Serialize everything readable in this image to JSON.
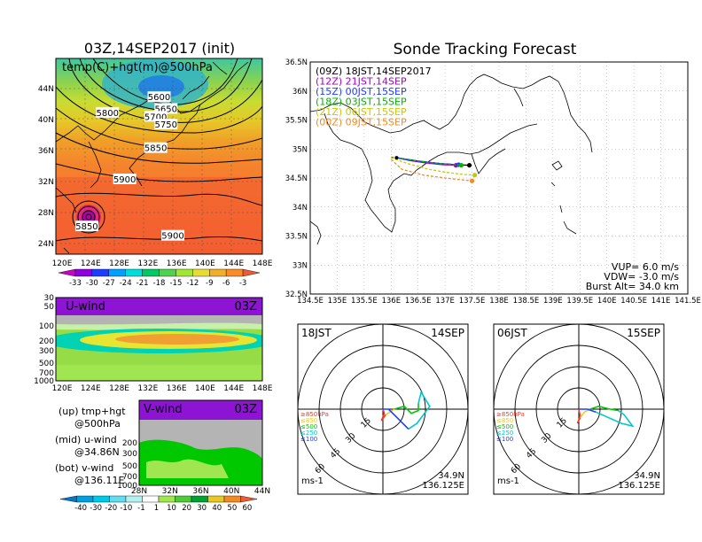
{
  "map_panel": {
    "title": "03Z,14SEP2017 (init)",
    "label": "temp(C)+hgt(m)@500hPa",
    "lon_ticks": [
      "120E",
      "124E",
      "128E",
      "132E",
      "136E",
      "140E",
      "144E",
      "148E"
    ],
    "lat_ticks": [
      "44N",
      "40N",
      "36N",
      "32N",
      "28N",
      "24N"
    ],
    "contour_labels": [
      "5600",
      "5650",
      "5700",
      "5750",
      "5800",
      "5850",
      "5900",
      "5850",
      "5900"
    ],
    "colorbar_ticks": [
      "-33",
      "-30",
      "-27",
      "-24",
      "-21",
      "-18",
      "-15",
      "-12",
      "-9",
      "-6",
      "-3"
    ],
    "colorbar_colors": [
      "#c800c8",
      "#8c00dc",
      "#1e3cff",
      "#00a0ff",
      "#00dcdc",
      "#00c864",
      "#50d250",
      "#a0e632",
      "#e6dc32",
      "#f0af28",
      "#fa8c28",
      "#f05a32"
    ]
  },
  "u_panel": {
    "label": "U-wind",
    "time": "03Z",
    "lon_ticks": [
      "120E",
      "124E",
      "128E",
      "132E",
      "136E",
      "140E",
      "144E",
      "148E"
    ],
    "lev_ticks": [
      "30",
      "50",
      "100",
      "200",
      "300",
      "500",
      "700",
      "1000"
    ]
  },
  "v_panel": {
    "label": "V-wind",
    "time": "03Z",
    "lat_ticks": [
      "28N",
      "32N",
      "36N",
      "40N",
      "44N"
    ],
    "lev_ticks": [
      "200",
      "300",
      "500",
      "700",
      "1000"
    ],
    "colorbar_ticks": [
      "-40",
      "-30",
      "-20",
      "-10",
      "-1",
      "1",
      "10",
      "20",
      "30",
      "40",
      "50",
      "60"
    ]
  },
  "notes": {
    "up_label": "(up) tmp+hgt",
    "up_sub": "@500hPa",
    "mid_label": "(mid) u-wind",
    "mid_sub": "@34.86N",
    "bot_label": "(bot) v-wind",
    "bot_sub": "@136.11E"
  },
  "track_panel": {
    "title": "Sonde Tracking Forecast",
    "legend": [
      {
        "text": "(09Z)  18JST,14SEP2017",
        "color": "#000000"
      },
      {
        "text": "(12Z)  21JST,14SEP",
        "color": "#a000c8"
      },
      {
        "text": "(15Z)  00JST,15SEP",
        "color": "#1e3cff"
      },
      {
        "text": "(18Z)  03JST,15SEP",
        "color": "#00b400"
      },
      {
        "text": "(21Z)  06JST,15SEP",
        "color": "#c8c800"
      },
      {
        "text": "(00Z)  09JST,15SEP",
        "color": "#f08c28"
      }
    ],
    "vup": "VUP=  6.0  m/s",
    "vdw": "VDW= -3.0  m/s",
    "burst": "Burst Alt=  34.0  km",
    "lon_ticks": [
      "134.5E",
      "135E",
      "135.5E",
      "136E",
      "136.5E",
      "137E",
      "137.5E",
      "138E",
      "138.5E",
      "139E",
      "139.5E",
      "140E",
      "140.5E",
      "141E",
      "141.5E"
    ],
    "lat_ticks": [
      "36.5N",
      "36N",
      "35.5N",
      "35N",
      "34.5N",
      "34N",
      "33.5N",
      "33N",
      "32.5N"
    ]
  },
  "hodo_left": {
    "time": "18JST",
    "date": "14SEP",
    "lat": "34.9N",
    "lon": "136.125E",
    "unit": "ms-1",
    "ring_labels": [
      "15",
      "30",
      "45",
      "60"
    ],
    "level_legend": [
      "≥850hPa",
      "≤850",
      "≤500",
      "≤250",
      "≤100"
    ],
    "level_colors": [
      "#f03c28",
      "#f0c828",
      "#00c800",
      "#00c8c8",
      "#1e3cff"
    ]
  },
  "hodo_right": {
    "time": "06JST",
    "date": "15SEP",
    "lat": "34.9N",
    "lon": "136.125E",
    "unit": "ms-1",
    "ring_labels": [
      "15",
      "30",
      "45",
      "60"
    ],
    "level_legend": [
      "≥850hPa",
      "≤850",
      "≤500",
      "≤250",
      "≤100"
    ],
    "level_colors": [
      "#f03c28",
      "#f0c828",
      "#00c800",
      "#00c8c8",
      "#1e3cff"
    ]
  },
  "chart_data": [
    {
      "type": "heatmap",
      "title": "03Z,14SEP2017 (init)",
      "subtitle": "temp(C)+hgt(m)@500hPa",
      "xlim": [
        120,
        150
      ],
      "ylim": [
        22,
        47
      ],
      "contours": [
        {
          "value": 5600,
          "lon": 135.0,
          "lat": 42.0
        },
        {
          "value": 5650,
          "lon": 136.0,
          "lat": 40.5
        },
        {
          "value": 5700,
          "lon": 134.5,
          "lat": 39.5
        },
        {
          "value": 5750,
          "lon": 136.0,
          "lat": 38.5
        },
        {
          "value": 5800,
          "lon": 127.5,
          "lat": 40.0
        },
        {
          "value": 5850,
          "lon": 134.5,
          "lat": 35.5
        },
        {
          "value": 5900,
          "lon": 130.0,
          "lat": 31.5
        },
        {
          "value": 5850,
          "lon": 124.5,
          "lat": 25.5
        },
        {
          "value": 5900,
          "lon": 137.0,
          "lat": 24.3
        }
      ]
    },
    {
      "type": "heatmap",
      "title": "U-wind",
      "xlabel": "",
      "xlim": [
        120,
        150
      ],
      "ylim": [
        1000,
        30
      ]
    },
    {
      "type": "heatmap",
      "title": "V-wind",
      "xlim": [
        28,
        44
      ],
      "ylim": [
        1000,
        30
      ]
    },
    {
      "type": "line",
      "title": "Sonde Tracking Forecast",
      "xlim": [
        134.5,
        141.5
      ],
      "ylim": [
        32.5,
        36.5
      ],
      "launch": {
        "lon": 136.1,
        "lat": 34.85
      },
      "series": [
        {
          "name": "(09Z)  18JST,14SEP2017",
          "color": "#000000",
          "x": [
            136.1,
            136.3,
            136.6,
            136.9,
            137.2,
            137.45
          ],
          "y": [
            34.85,
            34.82,
            34.78,
            34.75,
            34.73,
            34.72
          ]
        },
        {
          "name": "(12Z)  21JST,14SEP",
          "color": "#a000c8",
          "x": [
            136.1,
            136.35,
            136.65,
            136.95,
            137.2
          ],
          "y": [
            34.85,
            34.8,
            34.76,
            34.73,
            34.72
          ]
        },
        {
          "name": "(15Z)  00JST,15SEP",
          "color": "#1e3cff",
          "x": [
            136.1,
            136.4,
            136.7,
            137.0,
            137.25
          ],
          "y": [
            34.85,
            34.8,
            34.77,
            34.74,
            34.73
          ]
        },
        {
          "name": "(18Z)  03JST,15SEP",
          "color": "#00b400",
          "x": [
            136.0,
            136.3,
            136.7,
            137.0,
            137.3
          ],
          "y": [
            34.86,
            34.82,
            34.77,
            34.74,
            34.72
          ]
        },
        {
          "name": "(21Z)  06JST,15SEP",
          "color": "#c8c800",
          "x": [
            136.0,
            136.3,
            136.7,
            137.0,
            137.35,
            137.55
          ],
          "y": [
            34.85,
            34.75,
            34.65,
            34.6,
            34.56,
            34.55
          ]
        },
        {
          "name": "(00Z)  09JST,15SEP",
          "color": "#f08c28",
          "x": [
            136.0,
            136.2,
            136.6,
            137.0,
            137.3,
            137.5
          ],
          "y": [
            34.82,
            34.65,
            34.55,
            34.5,
            34.47,
            34.45
          ]
        }
      ]
    },
    {
      "type": "line",
      "title": "18JST 14SEP",
      "xlabel": "ms-1",
      "xlim": [
        -60,
        60
      ],
      "ylim": [
        -60,
        60
      ],
      "series": [
        {
          "name": "≥850hPa",
          "color": "#f03c28",
          "x": [
            0,
            1,
            -1,
            2
          ],
          "y": [
            0,
            -3,
            -8,
            -4
          ]
        },
        {
          "name": "≤850",
          "color": "#f0c828",
          "x": [
            2,
            5,
            8
          ],
          "y": [
            -4,
            -2,
            0
          ]
        },
        {
          "name": "≤500",
          "color": "#00c800",
          "x": [
            8,
            15,
            20,
            25,
            25
          ],
          "y": [
            0,
            2,
            -3,
            -1,
            4
          ]
        },
        {
          "name": "≤250",
          "color": "#00c8c8",
          "x": [
            25,
            27,
            33,
            24,
            18
          ],
          "y": [
            4,
            12,
            2,
            -10,
            -14
          ]
        },
        {
          "name": "≤100",
          "color": "#1e3cff",
          "x": [
            18,
            10,
            4,
            0
          ],
          "y": [
            -14,
            -6,
            0,
            0
          ]
        }
      ]
    },
    {
      "type": "line",
      "title": "06JST 15SEP",
      "xlabel": "ms-1",
      "xlim": [
        -60,
        60
      ],
      "ylim": [
        -60,
        60
      ],
      "series": [
        {
          "name": "≥850hPa",
          "color": "#f03c28",
          "x": [
            0,
            1,
            -1,
            1
          ],
          "y": [
            0,
            -5,
            -10,
            -6
          ]
        },
        {
          "name": "≤850",
          "color": "#f0c828",
          "x": [
            1,
            4,
            8
          ],
          "y": [
            -6,
            -2,
            0
          ]
        },
        {
          "name": "≤500",
          "color": "#00c800",
          "x": [
            8,
            14,
            22,
            28
          ],
          "y": [
            0,
            2,
            0,
            -1
          ]
        },
        {
          "name": "≤250",
          "color": "#00c8c8",
          "x": [
            28,
            32,
            38,
            30,
            12
          ],
          "y": [
            -1,
            -4,
            -12,
            -10,
            -2
          ]
        },
        {
          "name": "≤100",
          "color": "#1e3cff",
          "x": [
            12,
            6,
            0
          ],
          "y": [
            -2,
            0,
            0
          ]
        }
      ]
    }
  ]
}
